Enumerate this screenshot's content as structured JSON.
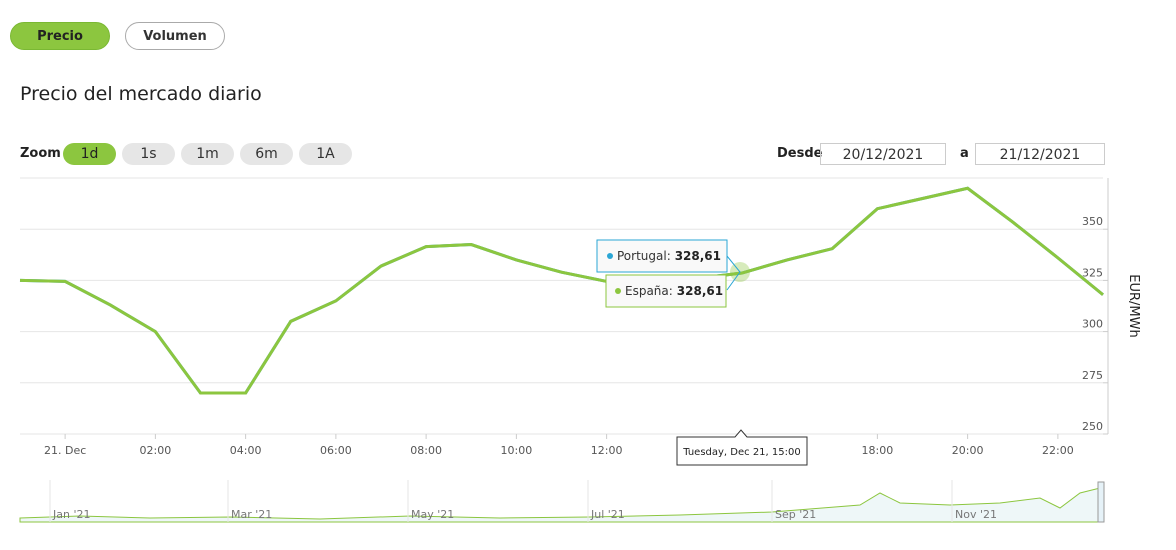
{
  "tabs": [
    "Precio",
    "Volumen"
  ],
  "heading": "Precio del mercado diario",
  "zoom": {
    "label": "Zoom",
    "buttons": [
      "1d",
      "1s",
      "1m",
      "6m",
      "1A"
    ]
  },
  "range": {
    "from_label": "Desde",
    "from": "20/12/2021",
    "to_label": "a",
    "to": "21/12/2021"
  },
  "chart_data": {
    "type": "line",
    "x": [
      null,
      "21. Dec",
      null,
      "02:00",
      null,
      "04:00",
      null,
      "06:00",
      null,
      "08:00",
      null,
      "10:00",
      null,
      "12:00",
      null,
      null,
      null,
      null,
      null,
      "18:00",
      null,
      "20:00",
      null,
      "22:00",
      null
    ],
    "series": [
      {
        "name": "Portugal",
        "color": "#2aa6d5",
        "values": [
          325,
          324.5,
          313,
          300,
          270,
          270,
          305,
          315,
          332,
          341.5,
          342.5,
          335,
          329,
          324.5,
          325,
          326,
          328.61,
          335,
          340.5,
          360,
          365,
          370,
          353.5,
          336,
          318
        ],
        "value_labels": [
          null,
          null,
          null,
          null,
          null,
          null,
          null,
          null,
          null,
          null,
          null,
          null,
          null,
          null,
          null,
          null,
          "328,61",
          null,
          null,
          null,
          null,
          null,
          null,
          null,
          null
        ]
      },
      {
        "name": "España",
        "color": "#8cc63f",
        "values": [
          325,
          324.5,
          313,
          300,
          270,
          270,
          305,
          315,
          332,
          341.5,
          342.5,
          335,
          329,
          324.5,
          325,
          326,
          328.61,
          335,
          340.5,
          360,
          365,
          370,
          353.5,
          336,
          318
        ],
        "value_labels": [
          null,
          null,
          null,
          null,
          null,
          null,
          null,
          null,
          null,
          null,
          null,
          null,
          null,
          null,
          null,
          null,
          "328,61",
          null,
          null,
          null,
          null,
          null,
          null,
          null,
          null
        ]
      }
    ],
    "tooltip_title": "Tuesday, Dec 21, 15:00",
    "y_label": "EUR/MWh",
    "ylim": [
      250,
      375
    ],
    "yticks": [
      250,
      275,
      300,
      325,
      350
    ],
    "grid": true,
    "navigator_labels": [
      "Jan '21",
      "Mar '21",
      "May '21",
      "Jul '21",
      "Sep '21",
      "Nov '21"
    ]
  }
}
